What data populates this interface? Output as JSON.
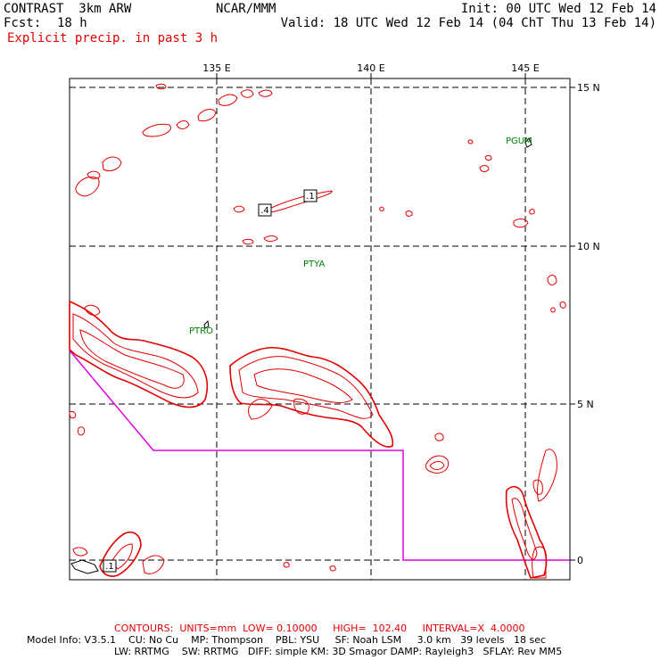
{
  "header": {
    "model": "CONTRAST  3km ARW",
    "fcst_label": "Fcst:",
    "fcst_value": "18 h",
    "subtitle": "Explicit precip. in past 3 h",
    "org": "NCAR/MMM",
    "init": "Init: 00 UTC Wed 12 Feb 14",
    "valid": "Valid: 18 UTC Wed 12 Feb 14 (04 ChT Thu 13 Feb 14)"
  },
  "map": {
    "lon_labels": [
      "135 E",
      "140 E",
      "145 E"
    ],
    "lat_labels": [
      "15 N",
      "10 N",
      "5 N",
      "0"
    ],
    "stations": [
      "PGUM",
      "PTYA",
      "PTRO"
    ],
    "contour_labels": [
      ".4",
      ".1",
      ".1"
    ],
    "colors": {
      "precip": "#e00000",
      "boundary": "#e000e0",
      "station": "#008000",
      "grid": "#000000"
    }
  },
  "footer": {
    "contours": "CONTOURS:  UNITS=mm  LOW= 0.10000     HIGH=  102.40     INTERVAL=X  4.0000",
    "model_info_1": "Model Info: V3.5.1    CU: No Cu    MP: Thompson    PBL: YSU     SF: Noah LSM     3.0 km   39 levels   18 sec",
    "model_info_2": "LW: RRTMG    SW: RRTMG   DIFF: simple KM: 3D Smagor DAMP: Rayleigh3   SFLAY: Rev MM5"
  }
}
